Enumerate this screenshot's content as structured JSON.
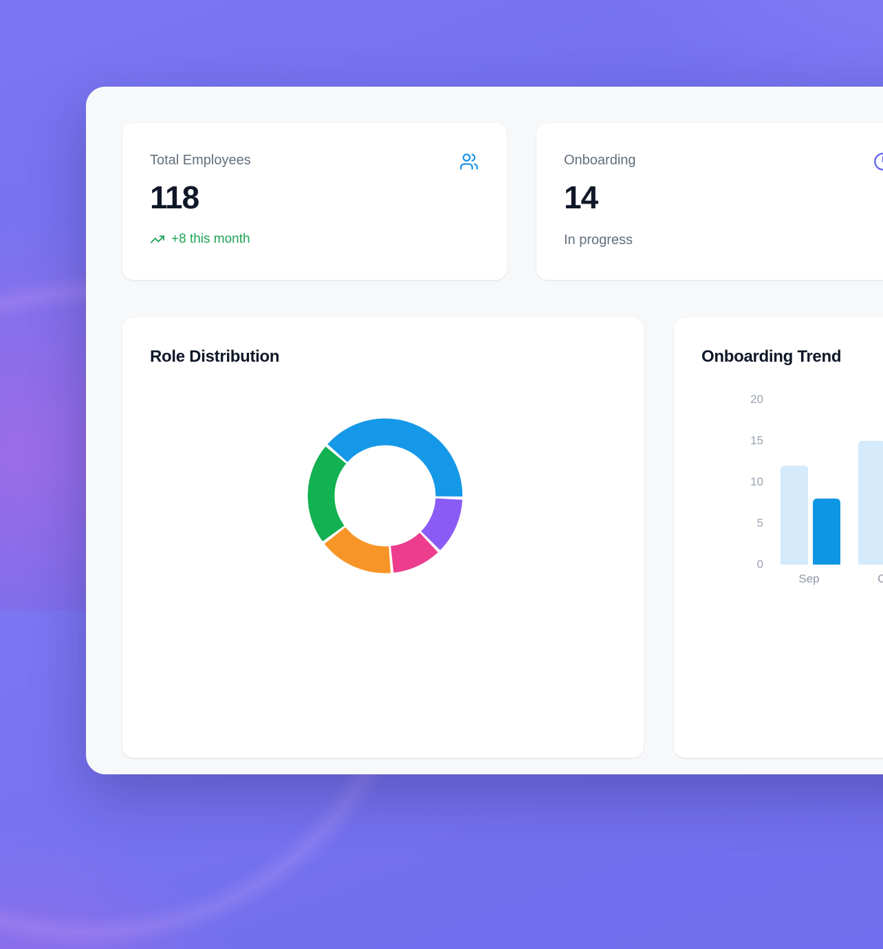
{
  "colors": {
    "background_purple": "#7370ee",
    "panel_bg": "#f7f8fa",
    "card_bg": "#ffffff",
    "value_text": "#101828",
    "label_text": "#626e7c",
    "axis_text": "#9aa3b0",
    "trend_green": "#1fa356",
    "users_icon_blue": "#1e95e8",
    "clock_icon_indigo": "#6365f1"
  },
  "stats": [
    {
      "label": "Total Employees",
      "value": "118",
      "trend_text": "+8 this month",
      "icon": "users-icon"
    },
    {
      "label": "Onboarding",
      "value": "14",
      "subtitle": "In progress",
      "icon": "clock-icon"
    }
  ],
  "chart_data": [
    {
      "type": "pie",
      "style": "donut",
      "title": "Role Distribution",
      "legend_visible": false,
      "start_angle_deg": 311,
      "segments": [
        {
          "name": "segment-blue",
          "color": "#1598e8",
          "angle_deg": 141,
          "percent": 39.2
        },
        {
          "name": "segment-purple",
          "color": "#8a5cf5",
          "angle_deg": 44,
          "percent": 12.2
        },
        {
          "name": "segment-pink",
          "color": "#ec3d8f",
          "angle_deg": 39,
          "percent": 10.8
        },
        {
          "name": "segment-orange",
          "color": "#f79528",
          "angle_deg": 58,
          "percent": 16.1
        },
        {
          "name": "segment-green",
          "color": "#12b151",
          "angle_deg": 78,
          "percent": 21.7
        }
      ]
    },
    {
      "type": "bar",
      "title": "Onboarding Trend",
      "legend_visible": false,
      "grid": false,
      "categories": [
        "Sep",
        "Oct"
      ],
      "series": [
        {
          "name": "light-blue-bar",
          "color": "#d5eafa",
          "values": [
            12,
            15
          ]
        },
        {
          "name": "dark-blue-bar",
          "color": "#0d96e4",
          "values": [
            8,
            null
          ]
        }
      ],
      "ylim": [
        0,
        20
      ],
      "yticks": [
        0,
        5,
        10,
        15,
        20
      ]
    }
  ]
}
